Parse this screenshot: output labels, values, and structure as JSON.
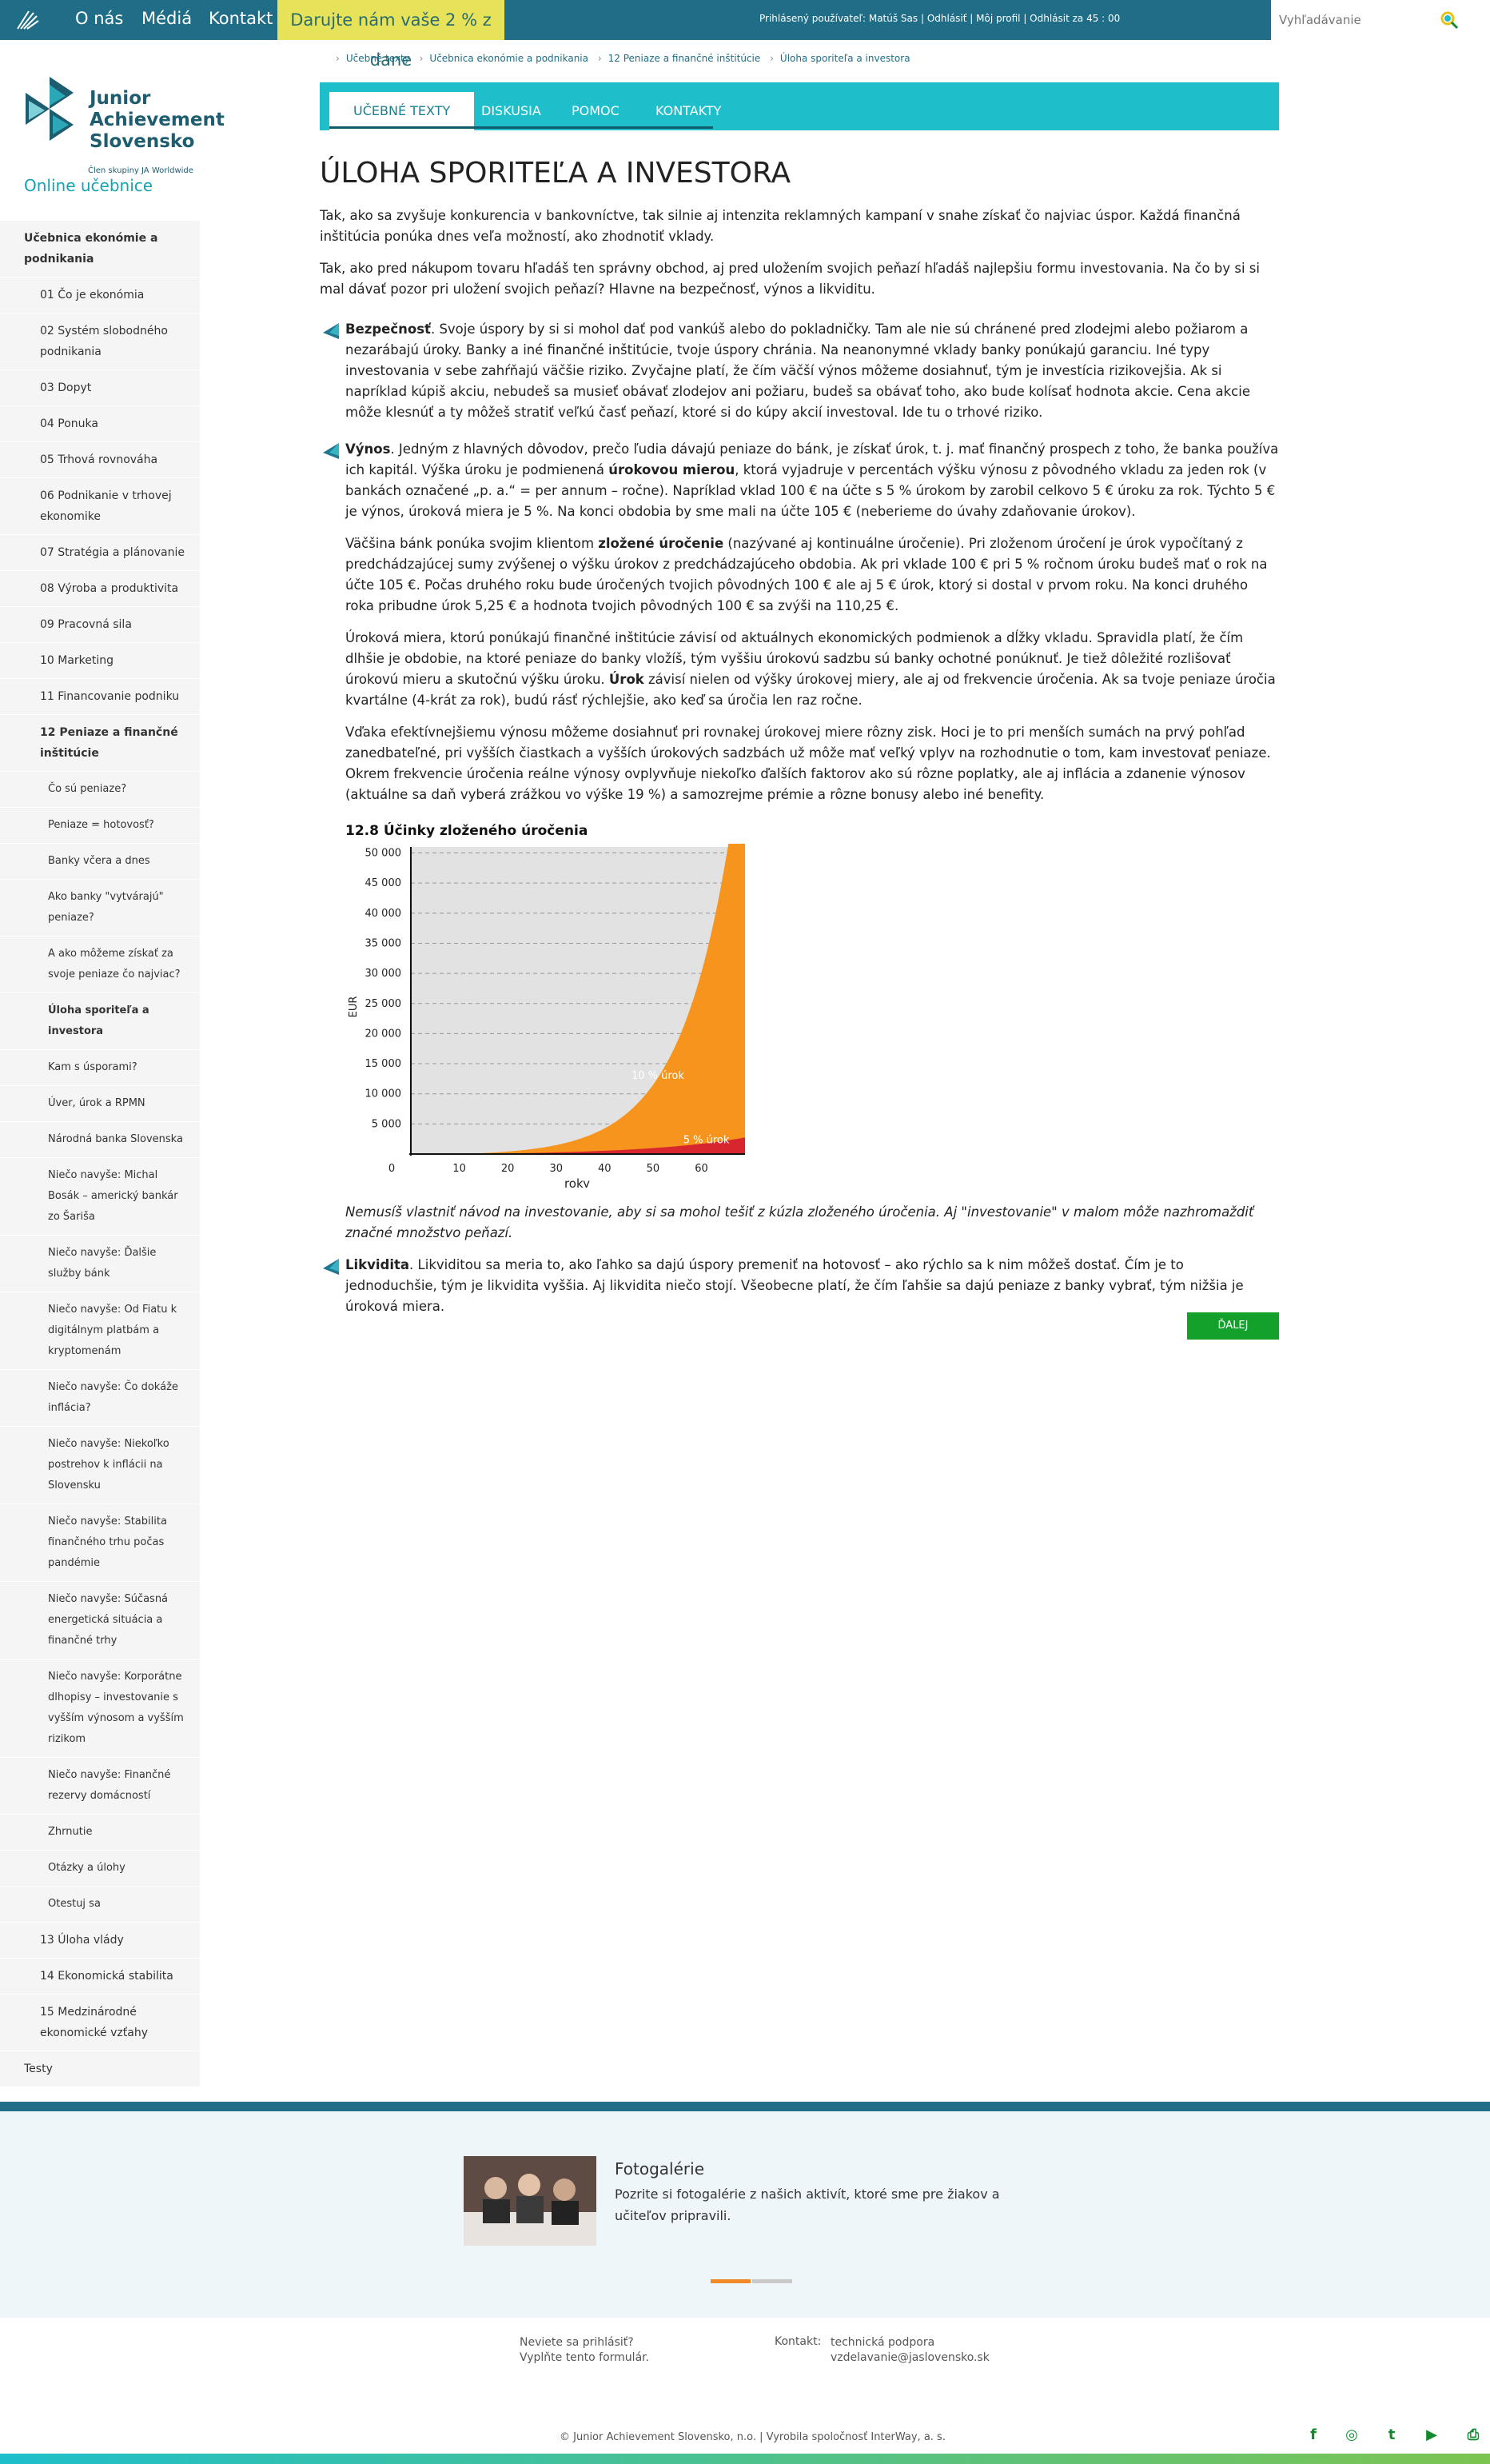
{
  "topbar": {
    "nav": [
      "O nás",
      "Médiá",
      "Kontakt"
    ],
    "donate": "Darujte nám vaše 2 % z dane",
    "userinfo": "Prihlásený používateľ: Matúš Sas | Odhlásiť | Môj profil | Odhlásit za 45 : 00",
    "search_placeholder": "Vyhľadávanie"
  },
  "brand": {
    "title_lines": [
      "Junior",
      "Achievement",
      "Slovensko"
    ],
    "subtitle": "Člen skupiny JA Worldwide"
  },
  "sidebar": {
    "heading": "Online učebnice",
    "items": [
      {
        "label": "Učebnica ekonómie a podnikania",
        "level": 0,
        "bold": true
      },
      {
        "label": "01 Čo je ekonómia",
        "level": 1
      },
      {
        "label": "02 Systém slobodného podnikania",
        "level": 1
      },
      {
        "label": "03 Dopyt",
        "level": 1
      },
      {
        "label": "04 Ponuka",
        "level": 1
      },
      {
        "label": "05 Trhová rovnováha",
        "level": 1
      },
      {
        "label": "06 Podnikanie v trhovej ekonomike",
        "level": 1
      },
      {
        "label": "07 Stratégia a plánovanie",
        "level": 1
      },
      {
        "label": "08 Výroba a produktivita",
        "level": 1
      },
      {
        "label": "09 Pracovná sila",
        "level": 1
      },
      {
        "label": "10 Marketing",
        "level": 1
      },
      {
        "label": "11 Financovanie podniku",
        "level": 1
      },
      {
        "label": "12 Peniaze a finančné inštitúcie",
        "level": 1,
        "bold": true
      },
      {
        "label": "Čo sú peniaze?",
        "level": 2
      },
      {
        "label": "Peniaze = hotovosť?",
        "level": 2
      },
      {
        "label": "Banky včera a dnes",
        "level": 2
      },
      {
        "label": "Ako banky \"vytvárajú\" peniaze?",
        "level": 2
      },
      {
        "label": "A ako môžeme získať za svoje peniaze čo najviac?",
        "level": 2
      },
      {
        "label": "Úloha sporiteľa a investora",
        "level": 2,
        "bold": true
      },
      {
        "label": "Kam s úsporami?",
        "level": 2
      },
      {
        "label": "Úver, úrok a RPMN",
        "level": 2
      },
      {
        "label": "Národná banka Slovenska",
        "level": 2
      },
      {
        "label": "Niečo navyše: Michal Bosák – americký bankár zo Šariša",
        "level": 2
      },
      {
        "label": "Niečo navyše: Ďalšie služby bánk",
        "level": 2
      },
      {
        "label": "Niečo navyše: Od Fiatu k digitálnym platbám a kryptomenám",
        "level": 2
      },
      {
        "label": "Niečo navyše: Čo dokáže inflácia?",
        "level": 2
      },
      {
        "label": "Niečo navyše: Niekoľko postrehov k inflácii na Slovensku",
        "level": 2
      },
      {
        "label": "Niečo navyše: Stabilita finančného trhu počas pandémie",
        "level": 2
      },
      {
        "label": "Niečo navyše: Súčasná energetická situácia a finančné trhy",
        "level": 2
      },
      {
        "label": "Niečo navyše: Korporátne dlhopisy – investovanie s vyšším výnosom a vyšším rizikom",
        "level": 2
      },
      {
        "label": "Niečo navyše: Finančné rezervy domácností",
        "level": 2
      },
      {
        "label": "Zhrnutie",
        "level": 2
      },
      {
        "label": "Otázky a úlohy",
        "level": 2
      },
      {
        "label": "Otestuj sa",
        "level": 2
      },
      {
        "label": "13 Úloha vlády",
        "level": 1
      },
      {
        "label": "14 Ekonomická stabilita",
        "level": 1
      },
      {
        "label": "15 Medzinárodné ekonomické vzťahy",
        "level": 1
      },
      {
        "label": "Testy",
        "level": 0
      }
    ]
  },
  "breadcrumb": [
    "Učebné texty",
    "Učebnica ekonómie a podnikania",
    "12 Peniaze a finančné inštitúcie",
    "Úloha sporiteľa a investora"
  ],
  "tabs": [
    "UČEBNÉ TEXTY",
    "DISKUSIA",
    "POMOC",
    "KONTAKTY"
  ],
  "main": {
    "title": "ÚLOHA SPORITEĽA A INVESTORA",
    "intro1": "Tak, ako sa zvyšuje konkurencia v bankovníctve, tak silnie aj intenzita reklamných kampaní v snahe získať čo najviac úspor. Každá finančná inštitúcia ponúka dnes veľa možností, ako zhodnotiť vklady.",
    "intro2": "Tak, ako pred nákupom tovaru hľadáš ten správny obchod, aj pred uložením svojich peňazí hľadáš najlepšiu formu investovania. Na čo by si si mal dávať pozor pri uložení svojich peňazí? Hlavne na bezpečnosť, výnos a likviditu.",
    "s1_bold": "Bezpečnosť",
    "s1_text": ". Svoje úspory by si si mohol dať pod vankúš alebo do pokladničky. Tam ale nie sú chránené pred zlodejmi alebo požiarom a nezarábajú úroky. Banky a iné finančné inštitúcie, tvoje úspory chránia. Na neanonymné vklady banky ponúkajú garanciu. Iné typy investovania v sebe zahŕňajú väčšie riziko. Zvyčajne platí, že čím väčší výnos môžeme dosiahnuť, tým je investícia rizikovejšia. Ak si napríklad kúpiš akciu, nebudeš sa musieť obávať zlodejov ani požiaru, budeš sa obávať toho, ako bude kolísať hodnota akcie. Cena akcie môže klesnúť a ty môžeš stratiť veľkú časť peňazí, ktoré si do kúpy akcií investoval. Ide tu o trhové riziko.",
    "s2_bold": "Výnos",
    "s2_text_a": ". Jedným z hlavných dôvodov, prečo ľudia dávajú peniaze do bánk, je získať úrok, t. j. mať finančný prospech z toho, že banka používa ich kapitál. Výška úroku je podmienená ",
    "s2_bold2": "úrokovou mierou",
    "s2_text_b": ", ktorá vyjadruje v percentách výšku výnosu z pôvodného vkladu za jeden rok (v bankách označené „p. a.“ = per annum – ročne). Napríklad vklad 100 € na účte s 5 % úrokom by zarobil celkovo 5 € úroku za rok. Týchto 5 € je výnos, úroková miera je 5 %. Na konci obdobia by sme mali na účte 105 € (neberieme do úvahy zdaňovanie úrokov).",
    "s2_text_c": "Väčšina bánk ponúka svojim klientom ",
    "s2_bold3": "zložené úročenie",
    "s2_text_d": " (nazývané aj kontinuálne úročenie). Pri zloženom úročení je úrok vypočítaný z predchádzajúcej sumy zvýšenej o výšku úrokov z predchádzajúceho obdobia. Ak pri vklade 100 € pri 5 % ročnom úroku budeš mať o rok na účte 105 €. Počas druhého roku bude úročených tvojich pôvodných 100 € ale aj 5 € úrok, ktorý si dostal v prvom roku. Na konci druhého roka pribudne úrok 5,25 € a hodnota tvojich pôvodných 100 € sa zvýši na 110,25 €.",
    "s2_text_e": "Úroková miera, ktorú ponúkajú finančné inštitúcie závisí od aktuálnych ekonomických podmienok a dĺžky vkladu. Spravidla platí, že čím dlhšie je obdobie, na ktoré peniaze do banky vložíš, tým vyššiu úrokovú sadzbu sú banky ochotné ponúknuť. Je tiež dôležité rozlišovať úrokovú mieru a skutočnú výšku úroku.",
    "s2_bold4": "Úrok",
    "s2_text_f": " závisí nielen od výšky úrokovej miery, ale aj od frekvencie úročenia. Ak sa tvoje peniaze úročia kvartálne (4-krát za rok), budú rásť rýchlejšie, ako keď sa úročia len raz ročne.",
    "s2_text_g": "Vďaka efektívnejšiemu výnosu môžeme dosiahnuť pri rovnakej úrokovej miere rôzny zisk. Hoci je to pri menších sumách na prvý pohľad zanedbateľné, pri vyšších čiastkach a vyšších úrokových sadzbách už môže mať veľký vplyv na rozhodnutie o tom, kam investovať peniaze. Okrem frekvencie úročenia reálne výnosy ovplyvňuje niekoľko ďalších faktorov ako sú rôzne poplatky, ale aj inflácia a zdanenie výnosov (aktuálne sa daň vyberá zrážkou vo výške 19 %) a samozrejme prémie a rôzne bonusy alebo iné benefity.",
    "note": "Nemusíš vlastniť návod na investovanie, aby si sa mohol tešiť z kúzla zloženého úročenia. Aj \"investovanie\" v malom môže nazhromaždiť značné množstvo peňazí.",
    "s3_bold": "Likvidita",
    "s3_text": ". Likviditou sa meria to, ako ľahko sa dajú úspory premeniť na hotovosť – ako rýchlo sa k nim môžeš dostať. Čím je to jednoduchšie, tým je likvidita vyššia. Aj likvidita niečo stojí. Všeobecne platí, že čím ľahšie sa dajú peniaze z banky vybrať, tým nižšia je úroková miera.",
    "next": "ĎALEJ"
  },
  "chart_data": {
    "type": "area",
    "title": "12.8 Účinky zloženého úročenia",
    "xlabel": "roky",
    "ylabel": "EUR",
    "xlim": [
      0,
      69
    ],
    "ylim": [
      0,
      51000
    ],
    "x_ticks": [
      0,
      10,
      20,
      30,
      40,
      50,
      60
    ],
    "y_ticks": [
      5000,
      10000,
      15000,
      20000,
      25000,
      30000,
      35000,
      40000,
      45000,
      50000
    ],
    "y_tick_labels": [
      "5 000",
      "10 000",
      "15 000",
      "20 000",
      "25 000",
      "30 000",
      "35 000",
      "40 000",
      "45 000",
      "50 000"
    ],
    "grid": true,
    "background": "#e2e2e2",
    "series": [
      {
        "name": "10 % úrok",
        "color": "#f7941d",
        "principal": 100,
        "rate": 0.1,
        "start": 10,
        "end": 69
      },
      {
        "name": "5 % úrok",
        "color": "#d7262e",
        "principal": 100,
        "rate": 0.05,
        "start": 10,
        "end": 69
      }
    ]
  },
  "gallery": {
    "title": "Fotogalérie",
    "text": "Pozrite si fotogalérie z našich aktivít, ktoré sme pre žiakov a učiteľov pripravili."
  },
  "contact": {
    "login_help": [
      "Neviete sa prihlásiť?",
      "Vyplňte tento formulár."
    ],
    "label": "Kontakt:",
    "support": [
      "technická podpora",
      "vzdelavanie@jaslovensko.sk"
    ]
  },
  "copyright": "© Junior Achievement Slovensko, n.o. | Vyrobila spoločnosť InterWay, a. s.",
  "social": [
    "f",
    "◎",
    "t",
    "▶",
    "⎙"
  ],
  "colors": {
    "topbar": "#1f6d86",
    "accent": "#1ebfca",
    "donate": "#e6e35a",
    "next": "#13a12c"
  }
}
